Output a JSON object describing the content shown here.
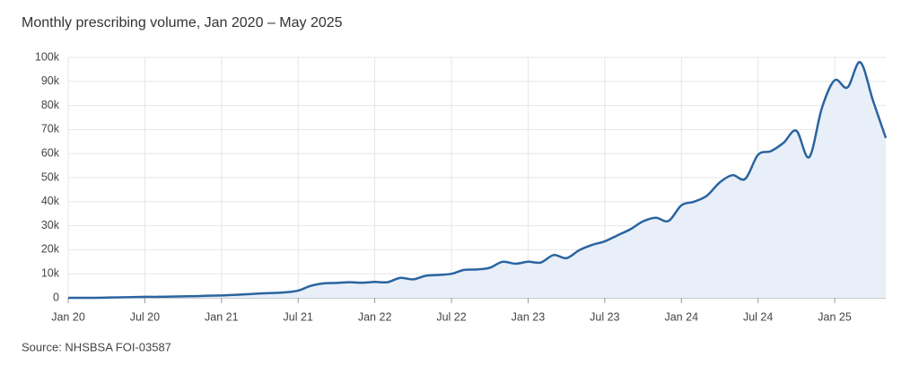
{
  "chart_data": {
    "type": "area",
    "title": "Monthly prescribing volume, Jan 2020 – May 2025",
    "source": "Source: NHSBSA FOI-03587",
    "categories": [
      "Jan 20",
      null,
      null,
      null,
      null,
      null,
      "Jul 20",
      null,
      null,
      null,
      null,
      null,
      "Jan 21",
      null,
      null,
      null,
      null,
      null,
      "Jul 21",
      null,
      null,
      null,
      null,
      null,
      "Jan 22",
      null,
      null,
      null,
      null,
      null,
      "Jul 22",
      null,
      null,
      null,
      null,
      null,
      "Jan 23",
      null,
      null,
      null,
      null,
      null,
      "Jul 23",
      null,
      null,
      null,
      null,
      null,
      "Jan 24",
      null,
      null,
      null,
      null,
      null,
      "Jul 24",
      null,
      null,
      null,
      null,
      null,
      "Jan 25",
      null,
      null,
      null,
      null
    ],
    "values": [
      0,
      0,
      0,
      100,
      200,
      300,
      400,
      400,
      500,
      600,
      700,
      900,
      1000,
      1200,
      1500,
      1800,
      2000,
      2300,
      3000,
      5000,
      6000,
      6200,
      6500,
      6300,
      6600,
      6500,
      8300,
      7700,
      9200,
      9500,
      10000,
      11600,
      11800,
      12500,
      15000,
      14200,
      15000,
      14700,
      17800,
      16500,
      19800,
      22000,
      23500,
      26000,
      28500,
      31800,
      33300,
      32000,
      38500,
      40000,
      42500,
      48000,
      51000,
      49500,
      59500,
      61000,
      64500,
      69500,
      58500,
      79000,
      90500,
      87500,
      98000,
      82000,
      66500
    ],
    "color": "#2a64a0",
    "fill": "#e9eff8",
    "ylim": [
      0,
      100000
    ],
    "yticks": [
      0,
      {
        "value": 10000,
        "label": "10k"
      },
      {
        "value": 20000,
        "label": "20k"
      },
      {
        "value": 30000,
        "label": "30k"
      },
      {
        "value": 40000,
        "label": "40k"
      },
      {
        "value": 50000,
        "label": "50k"
      },
      {
        "value": 60000,
        "label": "60k"
      },
      {
        "value": 70000,
        "label": "70k"
      },
      {
        "value": 80000,
        "label": "80k"
      },
      {
        "value": 90000,
        "label": "90k"
      },
      {
        "value": 100000,
        "label": "100k"
      }
    ],
    "grid": true
  }
}
